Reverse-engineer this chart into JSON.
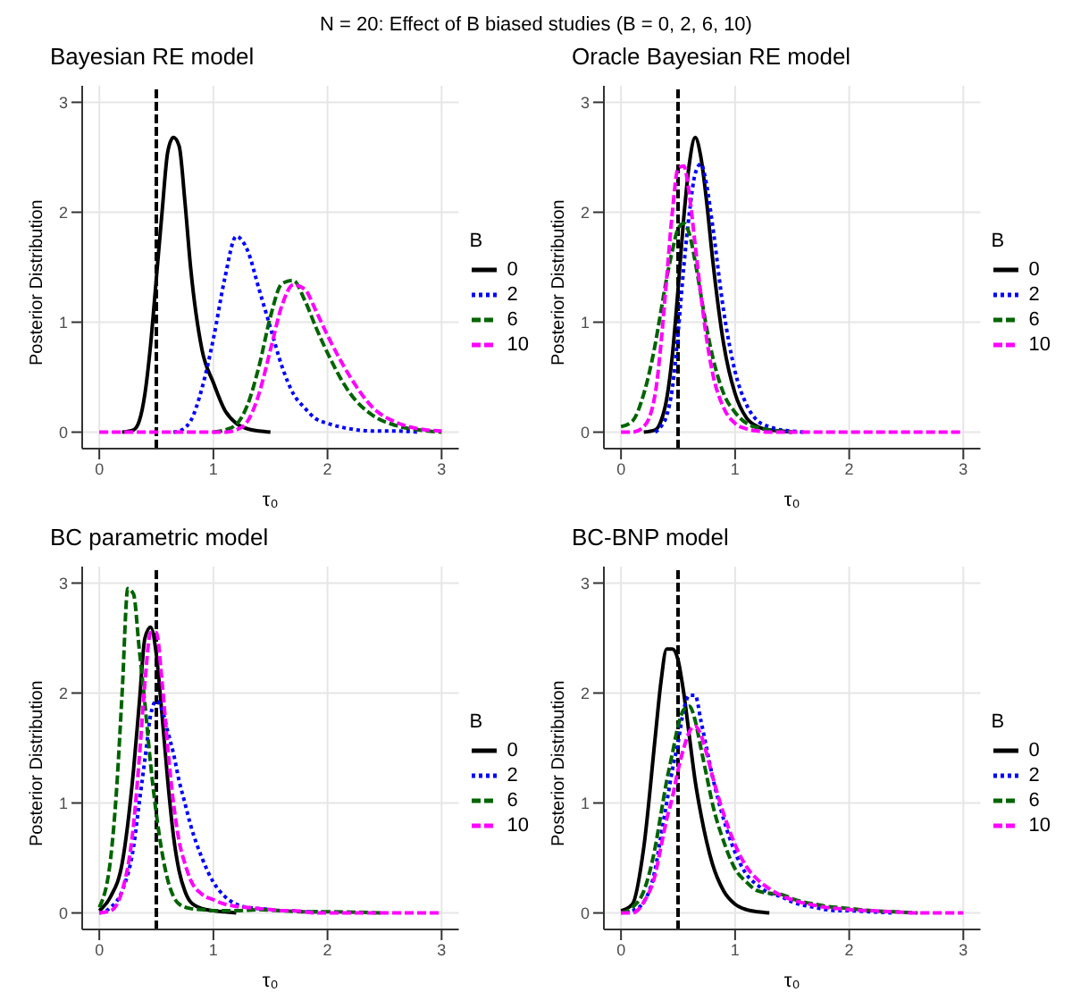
{
  "chart_data": [
    {
      "type": "line",
      "title": "Bayesian RE model",
      "annotations": [
        "N = 20: Effect of B biased studies (B = 0, 2, 6, 10)"
      ],
      "xlabel": "τ₀",
      "ylabel": "Posterior Distribution",
      "legend_title": "B",
      "legend": "right",
      "grid": true,
      "xlim": [
        -0.15,
        3.15
      ],
      "ylim": [
        -0.15,
        3.15
      ],
      "xticks": [
        0,
        1,
        2,
        3
      ],
      "yticks": [
        0,
        1,
        2,
        3
      ],
      "ref_lines": [
        {
          "axis": "x",
          "value": 0.5,
          "color": "#000000",
          "line_style": "dashed"
        }
      ],
      "x": [
        0,
        0.1,
        0.2,
        0.3,
        0.35,
        0.4,
        0.45,
        0.5,
        0.55,
        0.6,
        0.65,
        0.7,
        0.75,
        0.8,
        0.9,
        1.0,
        1.1,
        1.2,
        1.3,
        1.4,
        1.5,
        1.6,
        1.7,
        1.8,
        1.9,
        2.0,
        2.2,
        2.4,
        2.6,
        2.8,
        3.0
      ],
      "series": [
        {
          "name": "0",
          "color": "#000000",
          "line_style": "solid",
          "values": [
            null,
            null,
            0,
            0.02,
            0.1,
            0.35,
            0.8,
            1.4,
            2.0,
            2.55,
            2.68,
            2.6,
            2.1,
            1.5,
            0.75,
            0.45,
            0.2,
            0.08,
            0.03,
            0.01,
            0,
            null,
            null,
            null,
            null,
            null,
            null,
            null,
            null,
            null,
            null
          ]
        },
        {
          "name": "2",
          "color": "#0000ff",
          "line_style": "dotted",
          "values": [
            null,
            null,
            null,
            null,
            null,
            null,
            null,
            null,
            null,
            null,
            0,
            0.01,
            0.04,
            0.1,
            0.4,
            0.85,
            1.4,
            1.78,
            1.65,
            1.3,
            0.95,
            0.6,
            0.35,
            0.22,
            0.12,
            0.08,
            0.03,
            0.01,
            0.01,
            0,
            null
          ]
        },
        {
          "name": "6",
          "color": "#006400",
          "line_style": "dashed",
          "values": [
            null,
            null,
            null,
            null,
            null,
            null,
            null,
            null,
            null,
            null,
            null,
            null,
            null,
            null,
            null,
            0,
            0.02,
            0.07,
            0.25,
            0.6,
            1.05,
            1.35,
            1.38,
            1.2,
            0.95,
            0.72,
            0.35,
            0.15,
            0.06,
            0.02,
            0
          ]
        },
        {
          "name": "10",
          "color": "#ff00ff",
          "line_style": "dashed",
          "values": [
            0,
            0,
            0,
            0,
            0,
            0,
            0,
            0,
            0,
            0,
            0,
            0,
            0,
            0,
            0,
            0,
            0,
            0.02,
            0.1,
            0.35,
            0.75,
            1.15,
            1.34,
            1.3,
            1.1,
            0.88,
            0.5,
            0.22,
            0.09,
            0.03,
            0.01
          ]
        }
      ]
    },
    {
      "type": "line",
      "title": "Oracle Bayesian RE model",
      "xlabel": "τ₀",
      "ylabel": "Posterior Distribution",
      "legend_title": "B",
      "legend": "right",
      "grid": true,
      "xlim": [
        -0.15,
        3.15
      ],
      "ylim": [
        -0.15,
        3.15
      ],
      "xticks": [
        0,
        1,
        2,
        3
      ],
      "yticks": [
        0,
        1,
        2,
        3
      ],
      "ref_lines": [
        {
          "axis": "x",
          "value": 0.5,
          "color": "#000000",
          "line_style": "dashed"
        }
      ],
      "x": [
        0,
        0.1,
        0.2,
        0.3,
        0.35,
        0.4,
        0.45,
        0.5,
        0.55,
        0.6,
        0.65,
        0.7,
        0.75,
        0.8,
        0.9,
        1.0,
        1.1,
        1.2,
        1.3,
        1.4,
        1.5,
        1.6,
        1.7,
        1.8,
        1.9,
        2.0,
        2.2,
        2.4,
        2.6,
        2.8,
        3.0
      ],
      "series": [
        {
          "name": "0",
          "color": "#000000",
          "line_style": "solid",
          "values": [
            null,
            null,
            0,
            0.02,
            0.1,
            0.3,
            0.7,
            1.3,
            1.95,
            2.45,
            2.68,
            2.5,
            2.1,
            1.6,
            0.8,
            0.35,
            0.13,
            0.05,
            0.02,
            0.01,
            0,
            null,
            null,
            null,
            null,
            null,
            null,
            null,
            null,
            null,
            null
          ]
        },
        {
          "name": "2",
          "color": "#0000ff",
          "line_style": "dotted",
          "values": [
            null,
            null,
            null,
            0,
            0.05,
            0.15,
            0.4,
            0.9,
            1.5,
            2.0,
            2.35,
            2.44,
            2.25,
            1.9,
            1.1,
            0.55,
            0.25,
            0.1,
            0.05,
            0.02,
            0.01,
            0,
            null,
            null,
            null,
            null,
            null,
            null,
            null,
            null,
            null
          ]
        },
        {
          "name": "6",
          "color": "#006400",
          "line_style": "dashed",
          "values": [
            0.05,
            0.1,
            0.35,
            0.8,
            1.1,
            1.4,
            1.65,
            1.85,
            1.9,
            1.8,
            1.55,
            1.25,
            0.95,
            0.7,
            0.35,
            0.18,
            0.08,
            0.04,
            0.02,
            0.01,
            0,
            null,
            null,
            null,
            null,
            null,
            null,
            null,
            null,
            null,
            null
          ]
        },
        {
          "name": "10",
          "color": "#ff00ff",
          "line_style": "dashed",
          "values": [
            0,
            0,
            0.05,
            0.35,
            0.8,
            1.4,
            2.0,
            2.4,
            2.42,
            2.15,
            1.7,
            1.25,
            0.85,
            0.55,
            0.22,
            0.08,
            0.03,
            0.01,
            0,
            0,
            0,
            0,
            0,
            0,
            0,
            0,
            0,
            0,
            0,
            0,
            0
          ]
        }
      ]
    },
    {
      "type": "line",
      "title": "BC parametric model",
      "xlabel": "τ₀",
      "ylabel": "Posterior Distribution",
      "legend_title": "B",
      "legend": "right",
      "grid": true,
      "xlim": [
        -0.15,
        3.15
      ],
      "ylim": [
        -0.15,
        3.15
      ],
      "xticks": [
        0,
        1,
        2,
        3
      ],
      "yticks": [
        0,
        1,
        2,
        3
      ],
      "ref_lines": [
        {
          "axis": "x",
          "value": 0.5,
          "color": "#000000",
          "line_style": "dashed"
        }
      ],
      "x": [
        0,
        0.1,
        0.2,
        0.3,
        0.35,
        0.4,
        0.45,
        0.5,
        0.55,
        0.6,
        0.65,
        0.7,
        0.75,
        0.8,
        0.9,
        1.0,
        1.1,
        1.2,
        1.3,
        1.4,
        1.5,
        1.6,
        1.7,
        1.8,
        1.9,
        2.0,
        2.2,
        2.4,
        2.6,
        2.8,
        3.0
      ],
      "series": [
        {
          "name": "0",
          "color": "#000000",
          "line_style": "solid",
          "values": [
            0.02,
            0.15,
            0.45,
            1.3,
            1.9,
            2.5,
            2.6,
            2.35,
            1.8,
            1.2,
            0.7,
            0.38,
            0.2,
            0.1,
            0.04,
            0.02,
            0.01,
            0,
            null,
            null,
            null,
            null,
            null,
            null,
            null,
            null,
            null,
            null,
            null,
            null,
            null
          ]
        },
        {
          "name": "2",
          "color": "#0000ff",
          "line_style": "dotted",
          "values": [
            0,
            0.05,
            0.2,
            0.6,
            1.0,
            1.4,
            1.8,
            1.93,
            1.85,
            1.65,
            1.45,
            1.2,
            1.0,
            0.8,
            0.5,
            0.28,
            0.15,
            0.08,
            0.05,
            0.04,
            0.03,
            0.02,
            0.02,
            0.01,
            0.01,
            0,
            null,
            null,
            null,
            null,
            null
          ]
        },
        {
          "name": "6",
          "color": "#006400",
          "line_style": "dashed",
          "x": [
            0,
            0.1,
            0.15,
            0.2,
            0.25,
            0.3,
            0.35,
            0.4,
            0.45,
            0.5,
            0.55,
            0.6,
            0.65,
            0.7,
            0.8,
            0.9,
            1.0,
            1.2,
            1.4,
            1.6,
            1.8,
            2.0,
            2.5
          ],
          "values": [
            0.05,
            0.5,
            1.1,
            2.0,
            2.95,
            2.9,
            2.4,
            1.9,
            1.35,
            0.9,
            0.55,
            0.3,
            0.15,
            0.08,
            0.04,
            0.03,
            0.02,
            0.02,
            0.03,
            0.02,
            0.01,
            0.01,
            0
          ]
        },
        {
          "name": "10",
          "color": "#ff00ff",
          "line_style": "dashed",
          "values": [
            0,
            0.02,
            0.2,
            0.8,
            1.4,
            2.1,
            2.55,
            2.55,
            2.1,
            1.5,
            1.0,
            0.65,
            0.45,
            0.3,
            0.17,
            0.12,
            0.08,
            0.06,
            0.05,
            0.04,
            0.03,
            0.02,
            0.02,
            0.01,
            0,
            0,
            0,
            0,
            0,
            0,
            0
          ]
        }
      ]
    },
    {
      "type": "line",
      "title": "BC-BNP model",
      "xlabel": "τ₀",
      "ylabel": "Posterior Distribution",
      "legend_title": "B",
      "legend": "right",
      "grid": true,
      "xlim": [
        -0.15,
        3.15
      ],
      "ylim": [
        -0.15,
        3.15
      ],
      "xticks": [
        0,
        1,
        2,
        3
      ],
      "yticks": [
        0,
        1,
        2,
        3
      ],
      "ref_lines": [
        {
          "axis": "x",
          "value": 0.5,
          "color": "#000000",
          "line_style": "dashed"
        }
      ],
      "x": [
        0,
        0.1,
        0.2,
        0.3,
        0.35,
        0.4,
        0.45,
        0.5,
        0.55,
        0.6,
        0.65,
        0.7,
        0.75,
        0.8,
        0.9,
        1.0,
        1.1,
        1.2,
        1.3,
        1.4,
        1.5,
        1.6,
        1.7,
        1.8,
        1.9,
        2.0,
        2.2,
        2.4,
        2.6,
        2.8,
        3.0
      ],
      "series": [
        {
          "name": "0",
          "color": "#000000",
          "line_style": "solid",
          "values": [
            0.02,
            0.08,
            0.6,
            1.6,
            2.1,
            2.4,
            2.4,
            2.3,
            2.0,
            1.6,
            1.2,
            0.9,
            0.65,
            0.45,
            0.2,
            0.08,
            0.03,
            0.01,
            0,
            null,
            null,
            null,
            null,
            null,
            null,
            null,
            null,
            null,
            null,
            null,
            null
          ]
        },
        {
          "name": "2",
          "color": "#0000ff",
          "line_style": "dotted",
          "values": [
            null,
            0.02,
            0.1,
            0.4,
            0.7,
            1.0,
            1.3,
            1.55,
            1.85,
            1.98,
            1.98,
            1.75,
            1.5,
            1.25,
            0.85,
            0.55,
            0.35,
            0.25,
            0.18,
            0.15,
            0.1,
            0.07,
            0.05,
            0.03,
            0.02,
            0.02,
            0.01,
            0,
            null,
            null,
            null
          ]
        },
        {
          "name": "6",
          "color": "#006400",
          "line_style": "dashed",
          "values": [
            0,
            0.05,
            0.2,
            0.6,
            0.9,
            1.2,
            1.45,
            1.7,
            1.85,
            1.88,
            1.75,
            1.5,
            1.25,
            1.0,
            0.65,
            0.4,
            0.28,
            0.2,
            0.18,
            0.17,
            0.13,
            0.1,
            0.08,
            0.06,
            0.05,
            0.04,
            0.02,
            0.01,
            0,
            null,
            null
          ]
        },
        {
          "name": "10",
          "color": "#ff00ff",
          "line_style": "dashed",
          "values": [
            0,
            0,
            0.1,
            0.35,
            0.6,
            0.85,
            1.05,
            1.3,
            1.5,
            1.65,
            1.7,
            1.62,
            1.45,
            1.25,
            0.9,
            0.62,
            0.42,
            0.3,
            0.22,
            0.16,
            0.12,
            0.09,
            0.07,
            0.05,
            0.04,
            0.03,
            0.02,
            0.01,
            0,
            0,
            0
          ]
        }
      ]
    }
  ]
}
